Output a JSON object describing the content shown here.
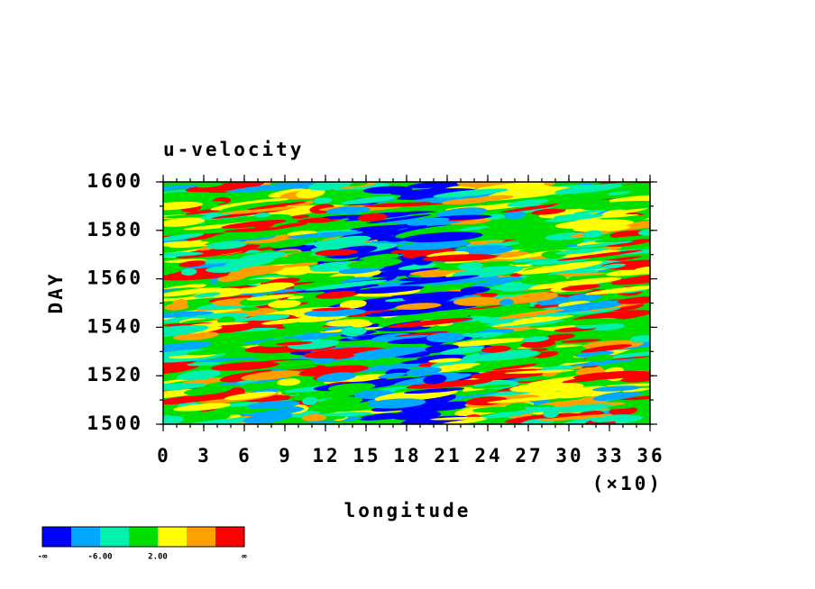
{
  "chart_data": {
    "type": "contour",
    "title": "u-velocity",
    "x_label": "longitude",
    "x_multiplier": "(×10)",
    "y_label": "DAY",
    "xlim": [
      0,
      36
    ],
    "xticks": [
      0,
      3,
      6,
      9,
      12,
      15,
      18,
      21,
      24,
      27,
      30,
      33,
      36
    ],
    "x_minor_step": 1,
    "ylim": [
      1500,
      1600
    ],
    "yticks": [
      1500,
      1520,
      1540,
      1560,
      1580,
      1600
    ],
    "y_minor_step": 10,
    "colorbar": {
      "colors": [
        "#0000ff",
        "#00a8ff",
        "#00f0b0",
        "#00e000",
        "#ffff00",
        "#ffa000",
        "#ff0000"
      ],
      "boundary_labels": [
        "-∞",
        null,
        {
          "value": -6,
          "label": "-6.00"
        },
        null,
        {
          "value": 2,
          "label": "2.00"
        },
        null,
        null,
        "∞"
      ]
    }
  }
}
